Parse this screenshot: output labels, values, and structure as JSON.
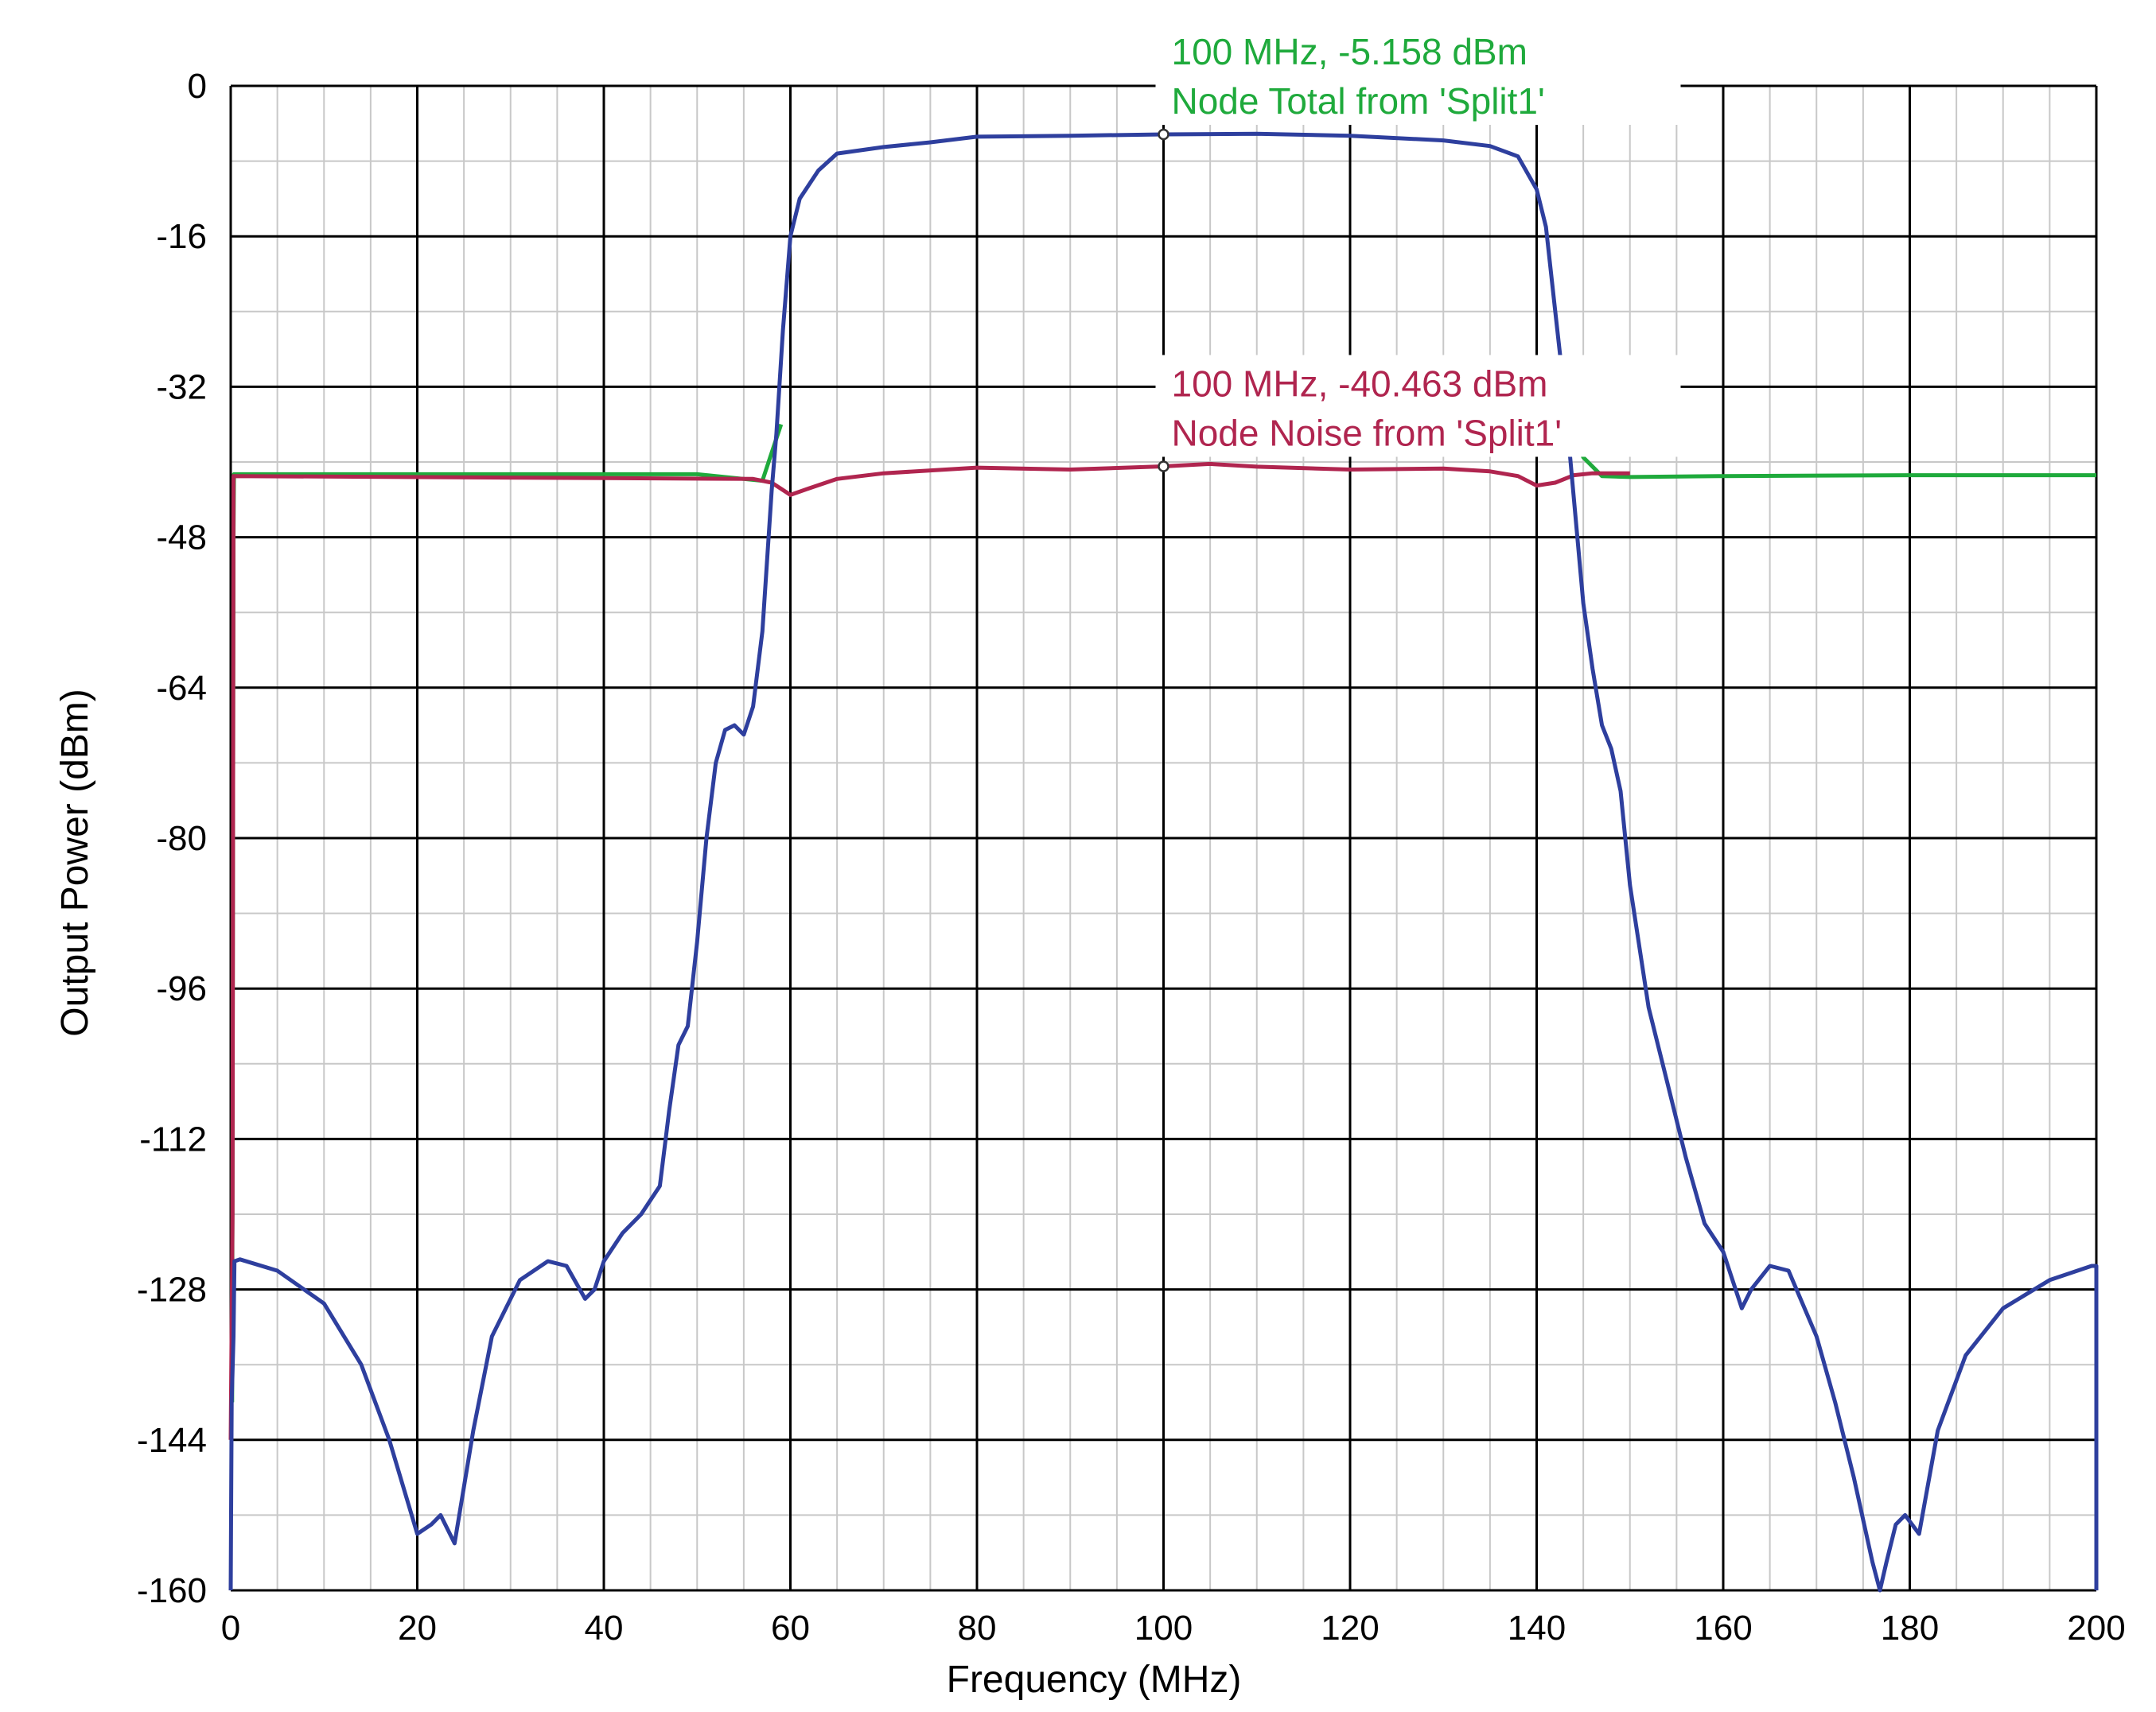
{
  "chart_data": {
    "type": "line",
    "xlabel": "Frequency (MHz)",
    "ylabel": "Output Power (dBm)",
    "xlim": [
      0,
      200
    ],
    "ylim": [
      -160,
      0
    ],
    "x_ticks": [
      0,
      20,
      40,
      60,
      80,
      100,
      120,
      140,
      160,
      180,
      200
    ],
    "y_ticks": [
      0,
      -16,
      -32,
      -48,
      -64,
      -80,
      -96,
      -112,
      -128,
      -144,
      -160
    ],
    "x_minor_step": 5,
    "y_minor_step": 8,
    "grid": true,
    "colors": {
      "node_total_signal": "#2e3f9e",
      "node_total_floor": "#1faa3c",
      "node_noise": "#b0254f",
      "grid_major": "#000000",
      "grid_minor": "#c8c8c8",
      "annotation_green": "#1faa3c",
      "annotation_red": "#b0254f"
    },
    "series": [
      {
        "key": "node_total_signal",
        "points": [
          [
            0,
            -160
          ],
          [
            0.1,
            -140
          ],
          [
            0.3,
            -133
          ],
          [
            0.4,
            -125
          ],
          [
            1,
            -124.8
          ],
          [
            5,
            -126
          ],
          [
            10,
            -129.5
          ],
          [
            14,
            -136
          ],
          [
            17,
            -144
          ],
          [
            20,
            -154
          ],
          [
            21.5,
            -153
          ],
          [
            22.5,
            -152
          ],
          [
            24,
            -155
          ],
          [
            26,
            -143
          ],
          [
            28,
            -133
          ],
          [
            31,
            -127
          ],
          [
            34,
            -125
          ],
          [
            36,
            -125.5
          ],
          [
            38,
            -129
          ],
          [
            39,
            -128
          ],
          [
            40,
            -125
          ],
          [
            42,
            -122
          ],
          [
            44,
            -120
          ],
          [
            46,
            -117
          ],
          [
            47,
            -109
          ],
          [
            48,
            -102
          ],
          [
            49,
            -100
          ],
          [
            50,
            -91
          ],
          [
            51,
            -80
          ],
          [
            52,
            -72
          ],
          [
            53,
            -68.5
          ],
          [
            54,
            -68
          ],
          [
            55,
            -69
          ],
          [
            56,
            -66
          ],
          [
            57,
            -58
          ],
          [
            58,
            -43
          ],
          [
            58.5,
            -37
          ],
          [
            59.2,
            -26
          ],
          [
            60,
            -16
          ],
          [
            61,
            -12
          ],
          [
            63,
            -9
          ],
          [
            65,
            -7.2
          ],
          [
            70,
            -6.5
          ],
          [
            75,
            -6
          ],
          [
            80,
            -5.4
          ],
          [
            90,
            -5.3
          ],
          [
            100,
            -5.158
          ],
          [
            110,
            -5.1
          ],
          [
            120,
            -5.3
          ],
          [
            130,
            -5.8
          ],
          [
            135,
            -6.4
          ],
          [
            138,
            -7.5
          ],
          [
            140,
            -11
          ],
          [
            141,
            -15
          ],
          [
            142,
            -24
          ],
          [
            143,
            -33
          ],
          [
            144,
            -44
          ],
          [
            145,
            -55
          ],
          [
            146,
            -62
          ],
          [
            147,
            -68
          ],
          [
            148,
            -70.5
          ],
          [
            149,
            -75
          ],
          [
            150,
            -85
          ],
          [
            152,
            -98
          ],
          [
            154,
            -106
          ],
          [
            156,
            -114
          ],
          [
            158,
            -121
          ],
          [
            160,
            -124
          ],
          [
            162,
            -130
          ],
          [
            163,
            -128
          ],
          [
            165,
            -125.5
          ],
          [
            167,
            -126
          ],
          [
            170,
            -133
          ],
          [
            172,
            -140
          ],
          [
            174,
            -148
          ],
          [
            176,
            -157
          ],
          [
            176.8,
            -160
          ],
          [
            177.5,
            -157
          ],
          [
            178.5,
            -153
          ],
          [
            179.5,
            -152
          ],
          [
            181,
            -154
          ],
          [
            183,
            -143
          ],
          [
            186,
            -135
          ],
          [
            190,
            -130
          ],
          [
            195,
            -127
          ],
          [
            199.5,
            -125.5
          ],
          [
            200,
            -125.5
          ],
          [
            200,
            -160
          ]
        ]
      },
      {
        "key": "node_total_floor",
        "points": [
          [
            0.15,
            -140
          ],
          [
            0.3,
            -48
          ],
          [
            0.35,
            -41.3
          ],
          [
            50,
            -41.3
          ],
          [
            55,
            -41.8
          ],
          [
            57,
            -42
          ],
          [
            58,
            -39
          ],
          [
            59,
            -36
          ]
        ]
      },
      {
        "key": "node_total_floor_right",
        "points": [
          [
            144,
            -37
          ],
          [
            145,
            -39.5
          ],
          [
            147,
            -41.5
          ],
          [
            150,
            -41.6
          ],
          [
            160,
            -41.5
          ],
          [
            180,
            -41.4
          ],
          [
            200,
            -41.4
          ]
        ]
      },
      {
        "key": "node_noise",
        "points": [
          [
            0,
            -144
          ],
          [
            0.2,
            -120
          ],
          [
            0.3,
            -41.5
          ],
          [
            56,
            -41.8
          ],
          [
            58,
            -42.2
          ],
          [
            60,
            -43.5
          ],
          [
            62,
            -42.8
          ],
          [
            65,
            -41.8
          ],
          [
            70,
            -41.2
          ],
          [
            80,
            -40.6
          ],
          [
            90,
            -40.8
          ],
          [
            100,
            -40.463
          ],
          [
            105,
            -40.2
          ],
          [
            110,
            -40.5
          ],
          [
            120,
            -40.8
          ],
          [
            130,
            -40.7
          ],
          [
            135,
            -41
          ],
          [
            138,
            -41.5
          ],
          [
            140,
            -42.5
          ],
          [
            142,
            -42.2
          ],
          [
            144,
            -41.4
          ],
          [
            146,
            -41.2
          ],
          [
            148,
            -41.2
          ],
          [
            150,
            -41.2
          ]
        ]
      }
    ],
    "markers": [
      {
        "x": 100,
        "y": -5.158,
        "line1": "100 MHz, -5.158 dBm",
        "line2": "Node Total from 'Split1'",
        "color_key": "annotation_green"
      },
      {
        "x": 100,
        "y": -40.463,
        "line1": "100 MHz, -40.463 dBm",
        "line2": "Node Noise from 'Split1'",
        "color_key": "annotation_red"
      }
    ]
  }
}
